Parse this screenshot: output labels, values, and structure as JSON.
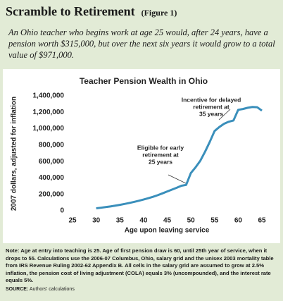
{
  "header": {
    "title": "Scramble to Retirement",
    "figure_label": "(Figure 1)"
  },
  "intro": "An Ohio teacher who begins work at age 25 would, after 24 years, have a pension worth $315,000, but over the next six years it would grow to a total value of $971,000.",
  "notes": {
    "label": "Note:",
    "text": "Age at entry into teaching is 25. Age of first pension draw is 60, until 25th year of service, when it drops to 55. Calculations use the 2006-07 Columbus, Ohio, salary grid and the unisex 2003 mortality table from IRS Revenue Ruling 2002-62 Appendix B. All cells in the salary grid are assumed to grow at 2.5% inflation, the pension cost of living adjustment (COLA) equals 3% (uncompounded), and the interest rate equals 5%."
  },
  "source": {
    "label": "SOURCE:",
    "text": "Authors' calculations"
  },
  "chart_data": {
    "type": "line",
    "title": "Teacher Pension Wealth in Ohio",
    "x_label": "Age upon leaving service",
    "y_label": "2007 dollars, adjusted for inflation",
    "x": [
      30,
      31,
      32,
      33,
      34,
      35,
      36,
      37,
      38,
      39,
      40,
      41,
      42,
      43,
      44,
      45,
      46,
      47,
      48,
      49,
      50,
      51,
      52,
      53,
      54,
      55,
      56,
      57,
      58,
      59,
      60,
      61,
      62,
      63,
      64,
      65
    ],
    "series": [
      {
        "color": "#3a8fbb",
        "values": [
          30000,
          37000,
          45000,
          53000,
          62000,
          72000,
          83000,
          95000,
          108000,
          122000,
          137000,
          153000,
          170000,
          190000,
          212000,
          235000,
          258000,
          280000,
          305000,
          315000,
          460000,
          530000,
          610000,
          720000,
          840000,
          971000,
          1020000,
          1060000,
          1085000,
          1100000,
          1230000,
          1240000,
          1255000,
          1265000,
          1262000,
          1220000
        ]
      }
    ],
    "xlim": [
      25,
      65
    ],
    "xticks": [
      25,
      30,
      35,
      40,
      45,
      50,
      55,
      60,
      65
    ],
    "ylim": [
      0,
      1400000
    ],
    "yticks": [
      0,
      {
        "value": 200000,
        "label": "200,000"
      },
      {
        "value": 400000,
        "label": "400,000"
      },
      {
        "value": 600000,
        "label": "600,000"
      },
      {
        "value": 800000,
        "label": "800,000"
      },
      {
        "value": 1000000,
        "label": "1,000,000"
      },
      {
        "value": 1200000,
        "label": "1,200,000"
      },
      {
        "value": 1400000,
        "label": "1,400,000"
      }
    ],
    "grid": false,
    "annotations": [
      [
        "Incentive for delayed",
        "retirement at",
        "35 years"
      ],
      [
        "Eligible for early",
        "retirement at",
        "25 years"
      ]
    ]
  }
}
